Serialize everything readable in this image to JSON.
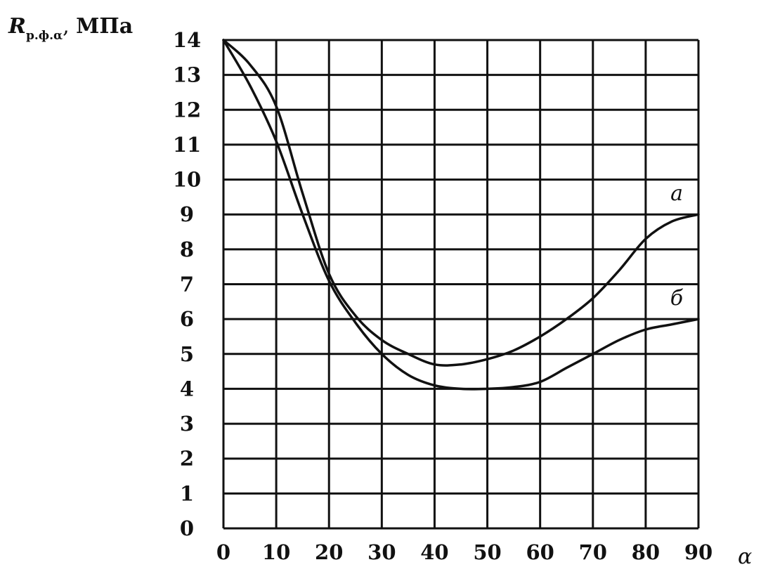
{
  "chart_data": {
    "type": "line",
    "ylabel": {
      "main": "R",
      "sub": "р.ф.α",
      "unit": "МПа"
    },
    "xlabel": "α",
    "xlim": [
      0,
      90
    ],
    "ylim": [
      0,
      14
    ],
    "x_ticks": [
      0,
      10,
      20,
      30,
      40,
      50,
      60,
      70,
      80,
      90
    ],
    "y_ticks": [
      0,
      1,
      2,
      3,
      4,
      5,
      6,
      7,
      8,
      9,
      10,
      11,
      12,
      13,
      14
    ],
    "grid": true,
    "series": [
      {
        "name": "а",
        "x": [
          0,
          5,
          10,
          15,
          20,
          25,
          30,
          35,
          40,
          45,
          50,
          55,
          60,
          65,
          70,
          75,
          80,
          85,
          90
        ],
        "y": [
          14,
          13.3,
          12.1,
          9.6,
          7.3,
          6.1,
          5.4,
          5.0,
          4.7,
          4.7,
          4.85,
          5.1,
          5.5,
          6.0,
          6.6,
          7.4,
          8.3,
          8.8,
          9.0
        ]
      },
      {
        "name": "б",
        "x": [
          0,
          5,
          10,
          15,
          20,
          25,
          30,
          35,
          40,
          45,
          50,
          55,
          60,
          65,
          70,
          75,
          80,
          85,
          90
        ],
        "y": [
          14,
          12.7,
          11.1,
          9.0,
          7.1,
          5.9,
          5.0,
          4.4,
          4.1,
          4.0,
          4.0,
          4.05,
          4.2,
          4.6,
          5.0,
          5.4,
          5.7,
          5.85,
          6.0
        ]
      }
    ]
  }
}
